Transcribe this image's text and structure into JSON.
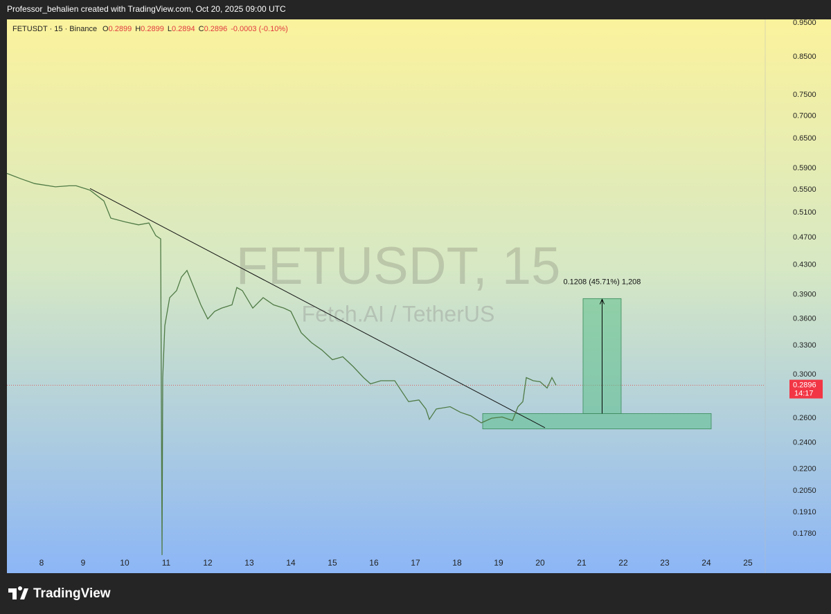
{
  "header": {
    "attribution": "Professor_behalien created with TradingView.com, Oct 20, 2025 09:00 UTC"
  },
  "chart_data": {
    "type": "line",
    "legend_symbol": "FETUSDT · 15 · Binance",
    "ohlc": [
      {
        "key": "O",
        "text": "0.2899"
      },
      {
        "key": "H",
        "text": "0.2899"
      },
      {
        "key": "L",
        "text": "0.2894"
      },
      {
        "key": "C",
        "text": "0.2896"
      }
    ],
    "change": "-0.0003 (-0.10%)",
    "watermark": "FETUSDT, 15",
    "watermark_subtitle": "Fetch.AI / TetherUS",
    "series": [
      {
        "name": "FETUSDT",
        "color": "#4f7a45",
        "x": [
          7.167,
          7.5,
          7.833,
          8.333,
          8.667,
          8.833,
          9.167,
          9.5,
          9.667,
          10,
          10.333,
          10.583,
          10.75,
          10.867,
          10.9,
          10.917,
          10.967,
          11.083,
          11.25,
          11.367,
          11.5,
          11.667,
          11.833,
          12,
          12.167,
          12.333,
          12.583,
          12.7,
          12.833,
          13.083,
          13.333,
          13.583,
          13.833,
          14,
          14.25,
          14.5,
          14.75,
          15,
          15.25,
          15.5,
          15.75,
          15.917,
          16.167,
          16.5,
          16.667,
          16.833,
          17.083,
          17.25,
          17.333,
          17.5,
          17.833,
          18.083,
          18.333,
          18.583,
          18.833,
          19.083,
          19.333,
          19.467,
          19.583,
          19.667,
          19.833,
          20,
          20.167,
          20.283,
          20.383
        ],
        "values": [
          0.58,
          0.57,
          0.561,
          0.555,
          0.557,
          0.557,
          0.549,
          0.53,
          0.501,
          0.495,
          0.49,
          0.493,
          0.473,
          0.468,
          0.166,
          0.297,
          0.352,
          0.386,
          0.395,
          0.413,
          0.422,
          0.399,
          0.377,
          0.36,
          0.369,
          0.373,
          0.377,
          0.399,
          0.395,
          0.373,
          0.386,
          0.377,
          0.373,
          0.369,
          0.344,
          0.333,
          0.325,
          0.315,
          0.318,
          0.308,
          0.297,
          0.291,
          0.294,
          0.294,
          0.284,
          0.2745,
          0.276,
          0.268,
          0.259,
          0.268,
          0.27,
          0.265,
          0.262,
          0.256,
          0.26,
          0.261,
          0.258,
          0.27,
          0.2745,
          0.297,
          0.294,
          0.293,
          0.287,
          0.297,
          0.2896
        ]
      }
    ],
    "trendline": {
      "x": [
        9.167,
        20.117
      ],
      "values": [
        0.552,
        0.252
      ]
    },
    "zone": {
      "x": [
        18.617,
        24.117
      ],
      "values": [
        0.251,
        0.264
      ]
    },
    "measure": {
      "x": [
        21.033,
        21.95
      ],
      "values": [
        0.264,
        0.3848
      ],
      "label": "0.1208 (45.71%) 1,208"
    },
    "last_price": {
      "value": 0.2896,
      "label": "0.2896",
      "countdown": "14:17"
    },
    "log_scale": true,
    "grid": false,
    "xlim": [
      7.167,
      25.417
    ],
    "xticks": [
      8,
      9,
      10,
      11,
      12,
      13,
      14,
      15,
      16,
      17,
      18,
      19,
      20,
      21,
      22,
      23,
      24,
      25
    ],
    "ylim": [
      0.1667,
      0.961
    ],
    "yticks": [
      {
        "value": 0.95,
        "label": "0.9500"
      },
      {
        "value": 0.85,
        "label": "0.8500"
      },
      {
        "value": 0.75,
        "label": "0.7500"
      },
      {
        "value": 0.7,
        "label": "0.7000"
      },
      {
        "value": 0.65,
        "label": "0.6500"
      },
      {
        "value": 0.59,
        "label": "0.5900"
      },
      {
        "value": 0.55,
        "label": "0.5500"
      },
      {
        "value": 0.51,
        "label": "0.5100"
      },
      {
        "value": 0.47,
        "label": "0.4700"
      },
      {
        "value": 0.43,
        "label": "0.4300"
      },
      {
        "value": 0.39,
        "label": "0.3900"
      },
      {
        "value": 0.36,
        "label": "0.3600"
      },
      {
        "value": 0.33,
        "label": "0.3300"
      },
      {
        "value": 0.3,
        "label": "0.3000"
      },
      {
        "value": 0.26,
        "label": "0.2600"
      },
      {
        "value": 0.24,
        "label": "0.2400"
      },
      {
        "value": 0.22,
        "label": "0.2200"
      },
      {
        "value": 0.205,
        "label": "0.2050"
      },
      {
        "value": 0.191,
        "label": "0.1910"
      },
      {
        "value": 0.178,
        "label": "0.1780"
      }
    ]
  },
  "footer": {
    "brand": "TradingView"
  }
}
